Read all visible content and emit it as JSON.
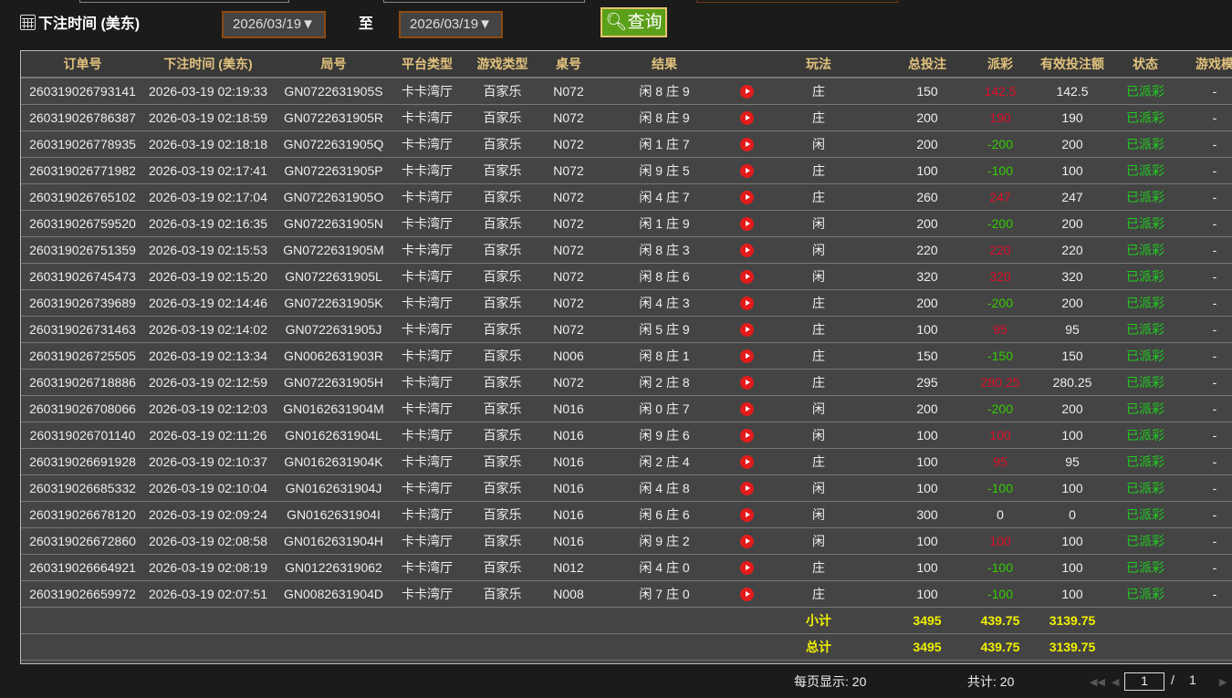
{
  "filter": {
    "label": "下注时间 (美东)",
    "start": "2026/03/19▼",
    "to": "至",
    "end": "2026/03/19▼",
    "query": "查询"
  },
  "columns": [
    "订单号",
    "下注时间 (美东)",
    "局号",
    "平台类型",
    "游戏类型",
    "桌号",
    "结果",
    "",
    "玩法",
    "总投注",
    "派彩",
    "有效投注额",
    "状态",
    "游戏模"
  ],
  "colors": {
    "payout_positive": "#e0102a",
    "payout_negative": "#33cc00",
    "status": "#1fcc1f",
    "header": "#e1c27c",
    "totals": "#f0f000"
  },
  "rows": [
    [
      "260319026793141",
      "2026-03-19 02:19:33",
      "GN0722631905S",
      "卡卡湾厅",
      "百家乐",
      "N072",
      "闲 8 庄 9",
      "庄",
      "150",
      "142.5",
      "142.5",
      "已派彩",
      "-"
    ],
    [
      "260319026786387",
      "2026-03-19 02:18:59",
      "GN0722631905R",
      "卡卡湾厅",
      "百家乐",
      "N072",
      "闲 8 庄 9",
      "庄",
      "200",
      "190",
      "190",
      "已派彩",
      "-"
    ],
    [
      "260319026778935",
      "2026-03-19 02:18:18",
      "GN0722631905Q",
      "卡卡湾厅",
      "百家乐",
      "N072",
      "闲 1 庄 7",
      "闲",
      "200",
      "-200",
      "200",
      "已派彩",
      "-"
    ],
    [
      "260319026771982",
      "2026-03-19 02:17:41",
      "GN0722631905P",
      "卡卡湾厅",
      "百家乐",
      "N072",
      "闲 9 庄 5",
      "庄",
      "100",
      "-100",
      "100",
      "已派彩",
      "-"
    ],
    [
      "260319026765102",
      "2026-03-19 02:17:04",
      "GN0722631905O",
      "卡卡湾厅",
      "百家乐",
      "N072",
      "闲 4 庄 7",
      "庄",
      "260",
      "247",
      "247",
      "已派彩",
      "-"
    ],
    [
      "260319026759520",
      "2026-03-19 02:16:35",
      "GN0722631905N",
      "卡卡湾厅",
      "百家乐",
      "N072",
      "闲 1 庄 9",
      "闲",
      "200",
      "-200",
      "200",
      "已派彩",
      "-"
    ],
    [
      "260319026751359",
      "2026-03-19 02:15:53",
      "GN0722631905M",
      "卡卡湾厅",
      "百家乐",
      "N072",
      "闲 8 庄 3",
      "闲",
      "220",
      "220",
      "220",
      "已派彩",
      "-"
    ],
    [
      "260319026745473",
      "2026-03-19 02:15:20",
      "GN0722631905L",
      "卡卡湾厅",
      "百家乐",
      "N072",
      "闲 8 庄 6",
      "闲",
      "320",
      "320",
      "320",
      "已派彩",
      "-"
    ],
    [
      "260319026739689",
      "2026-03-19 02:14:46",
      "GN0722631905K",
      "卡卡湾厅",
      "百家乐",
      "N072",
      "闲 4 庄 3",
      "庄",
      "200",
      "-200",
      "200",
      "已派彩",
      "-"
    ],
    [
      "260319026731463",
      "2026-03-19 02:14:02",
      "GN0722631905J",
      "卡卡湾厅",
      "百家乐",
      "N072",
      "闲 5 庄 9",
      "庄",
      "100",
      "95",
      "95",
      "已派彩",
      "-"
    ],
    [
      "260319026725505",
      "2026-03-19 02:13:34",
      "GN0062631903R",
      "卡卡湾厅",
      "百家乐",
      "N006",
      "闲 8 庄 1",
      "庄",
      "150",
      "-150",
      "150",
      "已派彩",
      "-"
    ],
    [
      "260319026718886",
      "2026-03-19 02:12:59",
      "GN0722631905H",
      "卡卡湾厅",
      "百家乐",
      "N072",
      "闲 2 庄 8",
      "庄",
      "295",
      "280.25",
      "280.25",
      "已派彩",
      "-"
    ],
    [
      "260319026708066",
      "2026-03-19 02:12:03",
      "GN0162631904M",
      "卡卡湾厅",
      "百家乐",
      "N016",
      "闲 0 庄 7",
      "闲",
      "200",
      "-200",
      "200",
      "已派彩",
      "-"
    ],
    [
      "260319026701140",
      "2026-03-19 02:11:26",
      "GN0162631904L",
      "卡卡湾厅",
      "百家乐",
      "N016",
      "闲 9 庄 6",
      "闲",
      "100",
      "100",
      "100",
      "已派彩",
      "-"
    ],
    [
      "260319026691928",
      "2026-03-19 02:10:37",
      "GN0162631904K",
      "卡卡湾厅",
      "百家乐",
      "N016",
      "闲 2 庄 4",
      "庄",
      "100",
      "95",
      "95",
      "已派彩",
      "-"
    ],
    [
      "260319026685332",
      "2026-03-19 02:10:04",
      "GN0162631904J",
      "卡卡湾厅",
      "百家乐",
      "N016",
      "闲 4 庄 8",
      "闲",
      "100",
      "-100",
      "100",
      "已派彩",
      "-"
    ],
    [
      "260319026678120",
      "2026-03-19 02:09:24",
      "GN0162631904I",
      "卡卡湾厅",
      "百家乐",
      "N016",
      "闲 6 庄 6",
      "闲",
      "300",
      "0",
      "0",
      "已派彩",
      "-"
    ],
    [
      "260319026672860",
      "2026-03-19 02:08:58",
      "GN0162631904H",
      "卡卡湾厅",
      "百家乐",
      "N016",
      "闲 9 庄 2",
      "闲",
      "100",
      "100",
      "100",
      "已派彩",
      "-"
    ],
    [
      "260319026664921",
      "2026-03-19 02:08:19",
      "GN0122631906​2",
      "卡卡湾厅",
      "百家乐",
      "N012",
      "闲 4 庄 0",
      "庄",
      "100",
      "-100",
      "100",
      "已派彩",
      "-"
    ],
    [
      "260319026659972",
      "2026-03-19 02:07:51",
      "GN0082631904D",
      "卡卡湾厅",
      "百家乐",
      "N008",
      "闲 7 庄 0",
      "庄",
      "100",
      "-100",
      "100",
      "已派彩",
      "-"
    ]
  ],
  "subtotal": {
    "label": "小计",
    "bet": "3495",
    "payout": "439.75",
    "valid": "3139.75"
  },
  "total": {
    "label": "总计",
    "bet": "3495",
    "payout": "439.75",
    "valid": "3139.75"
  },
  "pager": {
    "per_page": "每页显示: 20",
    "count": "共计: 20",
    "page": "1",
    "sep": "/",
    "pages": "1"
  }
}
